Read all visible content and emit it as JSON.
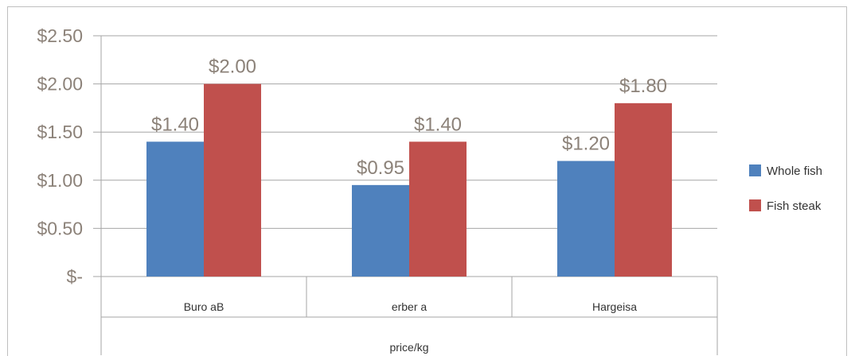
{
  "chart_data": {
    "type": "bar",
    "title": "",
    "xlabel": "price/kg",
    "ylabel": "",
    "categories": [
      "Buro aB",
      "erber a",
      "Hargeisa"
    ],
    "series": [
      {
        "name": "Whole fish",
        "values": [
          1.4,
          0.95,
          1.2
        ],
        "color": "#4f81bd",
        "labels": [
          "$1.40",
          "$0.95",
          "$1.20"
        ]
      },
      {
        "name": "Fish steak",
        "values": [
          2.0,
          1.4,
          1.8
        ],
        "color": "#c0504d",
        "labels": [
          "$2.00",
          "$1.40",
          "$1.80"
        ]
      }
    ],
    "yticks": [
      0,
      0.5,
      1.0,
      1.5,
      2.0,
      2.5
    ],
    "ytick_labels": [
      "$-",
      "$0.50",
      "$1.00",
      "$1.50",
      "$2.00",
      "$2.50"
    ],
    "ylim": [
      0,
      2.5
    ],
    "grid": true,
    "legend_position": "right"
  }
}
